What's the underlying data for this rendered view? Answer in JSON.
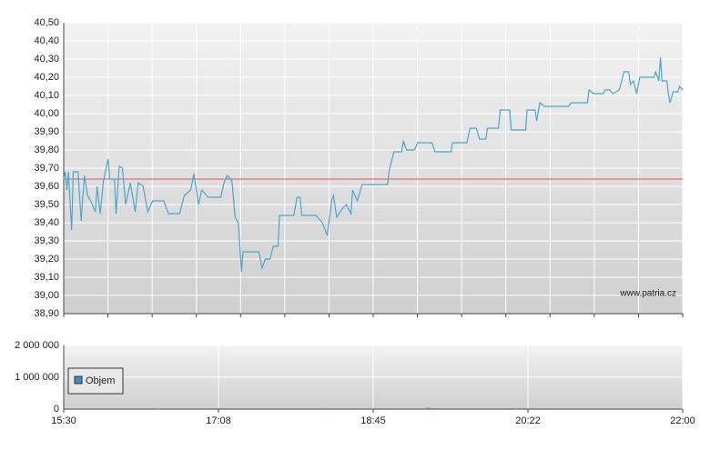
{
  "chart_data": [
    {
      "type": "line",
      "xlim": [
        930,
        1320
      ],
      "ylim": [
        38.9,
        40.5
      ],
      "yticks": [
        {
          "value": 38.9,
          "label": "38,90"
        },
        {
          "value": 39.0,
          "label": "39,00"
        },
        {
          "value": 39.1,
          "label": "39,10"
        },
        {
          "value": 39.2,
          "label": "39,20"
        },
        {
          "value": 39.3,
          "label": "39,30"
        },
        {
          "value": 39.4,
          "label": "39,40"
        },
        {
          "value": 39.5,
          "label": "39,50"
        },
        {
          "value": 39.6,
          "label": "39,60"
        },
        {
          "value": 39.7,
          "label": "39,70"
        },
        {
          "value": 39.8,
          "label": "39,80"
        },
        {
          "value": 39.9,
          "label": "39,90"
        },
        {
          "value": 40.0,
          "label": "40,00"
        },
        {
          "value": 40.1,
          "label": "40,10"
        },
        {
          "value": 40.2,
          "label": "40,20"
        },
        {
          "value": 40.3,
          "label": "40,30"
        },
        {
          "value": 40.4,
          "label": "40,40"
        },
        {
          "value": 40.5,
          "label": "40,50"
        }
      ],
      "xgrid": [
        930,
        957.86,
        985.71,
        1013.57,
        1041.43,
        1069.29,
        1097.14,
        1125,
        1152.86,
        1180.71,
        1208.57,
        1236.43,
        1264.29,
        1292.14,
        1320
      ],
      "grid": true,
      "reference_line": {
        "value": 39.64,
        "color": "#e05050"
      },
      "annotation": "www.patria.cz",
      "x": [
        930,
        931,
        932,
        933,
        935,
        936,
        939,
        941,
        943,
        945,
        947,
        950,
        951,
        953,
        955,
        958,
        959,
        962,
        963,
        965,
        967,
        969,
        972,
        975,
        977,
        980,
        983,
        986,
        993,
        996,
        1003,
        1006,
        1010,
        1012,
        1015,
        1017,
        1021,
        1029,
        1031,
        1033,
        1036,
        1038,
        1040,
        1042,
        1043,
        1053,
        1055,
        1057,
        1060,
        1062,
        1065,
        1066,
        1075,
        1077,
        1079,
        1080,
        1089,
        1093,
        1096,
        1099,
        1100,
        1102,
        1105,
        1108,
        1111,
        1112,
        1115,
        1118,
        1120,
        1134,
        1135,
        1138,
        1143,
        1144,
        1146,
        1151,
        1153,
        1162,
        1164,
        1174,
        1175,
        1184,
        1186,
        1190,
        1192,
        1196,
        1197,
        1204,
        1205,
        1211,
        1212,
        1221,
        1222,
        1227,
        1228,
        1230,
        1233,
        1248,
        1250,
        1260,
        1261,
        1264,
        1270,
        1271,
        1274,
        1276,
        1280,
        1283,
        1286,
        1287,
        1289,
        1291,
        1293,
        1302,
        1303,
        1305,
        1306,
        1307,
        1310,
        1311,
        1312,
        1314,
        1317,
        1318,
        1320
      ],
      "series": [
        {
          "color": "#4aa8cc",
          "values": [
            39.64,
            39.68,
            39.58,
            39.68,
            39.36,
            39.68,
            39.68,
            39.41,
            39.66,
            39.55,
            39.52,
            39.46,
            39.6,
            39.45,
            39.63,
            39.75,
            39.64,
            39.64,
            39.45,
            39.71,
            39.7,
            39.5,
            39.62,
            39.46,
            39.62,
            39.6,
            39.46,
            39.52,
            39.52,
            39.45,
            39.45,
            39.55,
            39.58,
            39.67,
            39.5,
            39.58,
            39.54,
            39.54,
            39.62,
            39.66,
            39.63,
            39.43,
            39.4,
            39.13,
            39.24,
            39.24,
            39.15,
            39.2,
            39.2,
            39.27,
            39.27,
            39.44,
            39.44,
            39.54,
            39.54,
            39.44,
            39.44,
            39.4,
            39.33,
            39.53,
            39.55,
            39.43,
            39.47,
            39.5,
            39.45,
            39.58,
            39.52,
            39.61,
            39.61,
            39.61,
            39.68,
            39.79,
            39.79,
            39.85,
            39.8,
            39.8,
            39.84,
            39.84,
            39.79,
            39.79,
            39.84,
            39.84,
            39.92,
            39.92,
            39.86,
            39.86,
            39.92,
            39.92,
            40.02,
            40.02,
            39.91,
            39.91,
            40.02,
            40.02,
            39.96,
            40.06,
            40.04,
            40.04,
            40.06,
            40.06,
            40.13,
            40.11,
            40.11,
            40.13,
            40.13,
            40.11,
            40.13,
            40.23,
            40.23,
            40.16,
            40.18,
            40.11,
            40.2,
            40.2,
            40.23,
            40.18,
            40.31,
            40.18,
            40.18,
            40.11,
            40.06,
            40.12,
            40.12,
            40.15,
            40.13
          ]
        }
      ]
    },
    {
      "type": "bar",
      "xlim": [
        930,
        1320
      ],
      "ylim": [
        0,
        2000000
      ],
      "yticks": [
        0,
        {
          "value": 1000000,
          "label": "1 000 000"
        },
        {
          "value": 2000000,
          "label": "2 000 000"
        }
      ],
      "xticks": [
        {
          "value": 930,
          "label": "15:30"
        },
        {
          "value": 1027.5,
          "label": "17:08"
        },
        {
          "value": 1125,
          "label": "18:45"
        },
        {
          "value": 1222.5,
          "label": "20:22"
        },
        {
          "value": 1320,
          "label": "22:00"
        }
      ],
      "grid": true,
      "x": [
        990,
        1096,
        1159,
        1160,
        1162,
        1215
      ],
      "series": [
        {
          "name": "Objem",
          "color": "#3a8fc0",
          "values": [
            15000,
            25000,
            40000,
            45000,
            30000,
            12000
          ]
        }
      ]
    }
  ]
}
